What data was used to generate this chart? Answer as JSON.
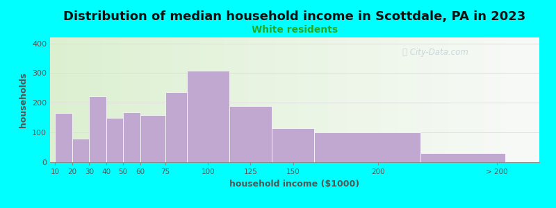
{
  "title": "Distribution of median household income in Scottdale, PA in 2023",
  "subtitle": "White residents",
  "xlabel": "household income ($1000)",
  "ylabel": "households",
  "title_fontsize": 13,
  "subtitle_fontsize": 10,
  "subtitle_color": "#22aa22",
  "bar_color": "#c0a8d0",
  "bar_edgecolor": "#ffffff",
  "background_color": "#00ffff",
  "ylim": [
    0,
    420
  ],
  "yticks": [
    0,
    100,
    200,
    300,
    400
  ],
  "categories": [
    "10",
    "20",
    "30",
    "40",
    "50",
    "60",
    "75",
    "100",
    "125",
    "150",
    "200",
    "> 200"
  ],
  "values": [
    165,
    80,
    222,
    150,
    168,
    158,
    235,
    307,
    188,
    115,
    100,
    30
  ],
  "bar_lefts": [
    10,
    20,
    30,
    40,
    50,
    60,
    75,
    87.5,
    112.5,
    137.5,
    162.5,
    225
  ],
  "bar_widths": [
    10,
    10,
    10,
    10,
    10,
    15,
    12.5,
    25,
    25,
    25,
    62.5,
    50
  ],
  "xtick_positions": [
    10,
    20,
    30,
    40,
    50,
    60,
    75,
    100,
    125,
    150,
    200,
    270
  ],
  "xlim": [
    7,
    295
  ],
  "watermark_text": "City-Data.com",
  "watermark_color": "#a0b8c8",
  "watermark_alpha": 0.5,
  "grid_color": "#dddddd",
  "axis_color": "#888888",
  "label_color": "#555555",
  "title_color": "#111111"
}
